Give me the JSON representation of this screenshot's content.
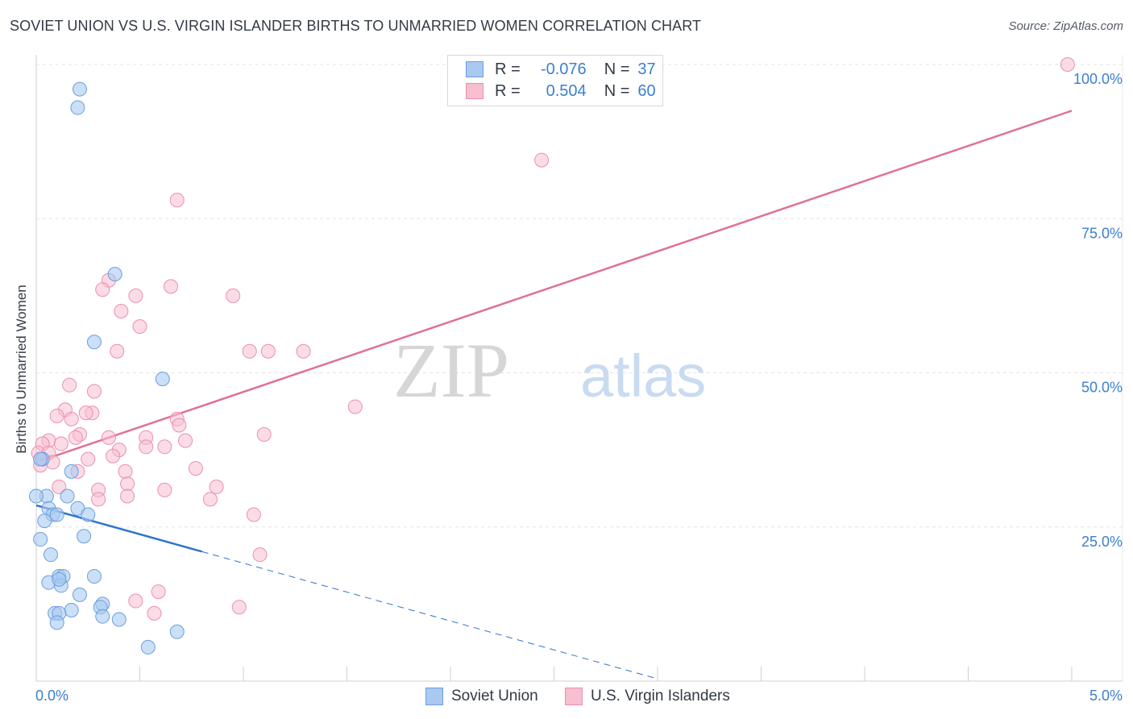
{
  "title": "SOVIET UNION VS U.S. VIRGIN ISLANDER BIRTHS TO UNMARRIED WOMEN CORRELATION CHART",
  "source": "Source: ZipAtlas.com",
  "watermark": {
    "zip": "ZIP",
    "atlas": "atlas"
  },
  "legend": {
    "r_label": "R =",
    "n_label": "N =",
    "rows": [
      {
        "r": "-0.076",
        "n": "37"
      },
      {
        "r": "0.504",
        "n": "60"
      }
    ]
  },
  "bottom_legend": [
    "Soviet Union",
    "U.S. Virgin Islanders"
  ],
  "colors": {
    "soviet_fill": "#a9c9f0",
    "soviet_stroke": "#6b9fe0",
    "soviet_line": "#2f74cc",
    "virgin_fill": "#f7bfd0",
    "virgin_stroke": "#ea8fae",
    "virgin_line": "#e0709a",
    "tick_label": "#3b7fd0"
  },
  "chart_data": {
    "type": "scatter",
    "title": "SOVIET UNION VS U.S. VIRGIN ISLANDER BIRTHS TO UNMARRIED WOMEN CORRELATION CHART",
    "xlabel": "",
    "ylabel": "Births to Unmarried Women",
    "xlim": [
      0,
      5
    ],
    "ylim": [
      0,
      100
    ],
    "x_tick_labels": [
      "0.0%",
      "5.0%"
    ],
    "y_tick_labels": [
      "25.0%",
      "50.0%",
      "75.0%",
      "100.0%"
    ],
    "y_ticks": [
      25,
      50,
      75,
      100
    ],
    "series": [
      {
        "name": "Soviet Union",
        "R": -0.076,
        "N": 37,
        "trend": {
          "x0": 0.0,
          "y0": 28.5,
          "x1": 0.8,
          "y1": 21.0,
          "dash_to_x": 3.0
        },
        "points": [
          [
            0.2,
            93
          ],
          [
            0.21,
            96
          ],
          [
            0.38,
            66
          ],
          [
            0.28,
            55
          ],
          [
            0.61,
            49
          ],
          [
            0.03,
            36
          ],
          [
            0.02,
            36
          ],
          [
            0.17,
            34
          ],
          [
            0.05,
            30
          ],
          [
            0.0,
            30
          ],
          [
            0.15,
            30
          ],
          [
            0.06,
            28
          ],
          [
            0.08,
            27
          ],
          [
            0.2,
            28
          ],
          [
            0.1,
            27
          ],
          [
            0.25,
            27
          ],
          [
            0.04,
            26
          ],
          [
            0.02,
            23
          ],
          [
            0.23,
            23.5
          ],
          [
            0.07,
            20.5
          ],
          [
            0.11,
            17
          ],
          [
            0.13,
            17
          ],
          [
            0.28,
            17
          ],
          [
            0.06,
            16
          ],
          [
            0.12,
            15.5
          ],
          [
            0.11,
            16.5
          ],
          [
            0.21,
            14
          ],
          [
            0.17,
            11.5
          ],
          [
            0.09,
            11
          ],
          [
            0.11,
            11
          ],
          [
            0.32,
            12.5
          ],
          [
            0.31,
            12
          ],
          [
            0.32,
            10.5
          ],
          [
            0.1,
            9.5
          ],
          [
            0.4,
            10
          ],
          [
            0.68,
            8
          ],
          [
            0.54,
            5.5
          ]
        ]
      },
      {
        "name": "U.S. Virgin Islanders",
        "R": 0.504,
        "N": 60,
        "trend": {
          "x0": 0.0,
          "y0": 35.5,
          "x1": 5.0,
          "y1": 92.5
        },
        "points": [
          [
            4.98,
            100
          ],
          [
            2.44,
            84.5
          ],
          [
            0.68,
            78
          ],
          [
            0.35,
            65
          ],
          [
            0.32,
            63.5
          ],
          [
            0.65,
            64
          ],
          [
            0.48,
            62.5
          ],
          [
            0.95,
            62.5
          ],
          [
            0.41,
            60
          ],
          [
            0.5,
            57.5
          ],
          [
            0.39,
            53.5
          ],
          [
            1.03,
            53.5
          ],
          [
            1.12,
            53.5
          ],
          [
            1.29,
            53.5
          ],
          [
            0.16,
            48
          ],
          [
            0.28,
            47
          ],
          [
            0.27,
            43.5
          ],
          [
            1.54,
            44.5
          ],
          [
            0.14,
            44
          ],
          [
            0.24,
            43.5
          ],
          [
            0.1,
            43
          ],
          [
            0.17,
            42.5
          ],
          [
            0.68,
            42.5
          ],
          [
            0.69,
            41.5
          ],
          [
            0.21,
            40
          ],
          [
            0.35,
            39.5
          ],
          [
            0.53,
            39.5
          ],
          [
            0.72,
            39
          ],
          [
            1.1,
            40
          ],
          [
            0.19,
            39.5
          ],
          [
            0.06,
            39
          ],
          [
            0.03,
            38.5
          ],
          [
            0.12,
            38.5
          ],
          [
            0.53,
            38
          ],
          [
            0.4,
            37.5
          ],
          [
            0.62,
            38
          ],
          [
            0.01,
            37
          ],
          [
            0.06,
            37
          ],
          [
            0.03,
            36
          ],
          [
            0.25,
            36
          ],
          [
            0.37,
            36.5
          ],
          [
            0.08,
            35.5
          ],
          [
            0.02,
            35
          ],
          [
            0.2,
            34
          ],
          [
            0.43,
            34
          ],
          [
            0.77,
            34.5
          ],
          [
            0.44,
            32
          ],
          [
            0.3,
            31
          ],
          [
            0.62,
            31
          ],
          [
            0.87,
            31.5
          ],
          [
            0.11,
            31.5
          ],
          [
            0.44,
            30
          ],
          [
            0.3,
            29.5
          ],
          [
            0.84,
            29.5
          ],
          [
            1.05,
            27
          ],
          [
            1.08,
            20.5
          ],
          [
            0.59,
            14.5
          ],
          [
            0.48,
            13
          ],
          [
            0.57,
            11
          ],
          [
            0.98,
            12
          ]
        ]
      }
    ]
  }
}
